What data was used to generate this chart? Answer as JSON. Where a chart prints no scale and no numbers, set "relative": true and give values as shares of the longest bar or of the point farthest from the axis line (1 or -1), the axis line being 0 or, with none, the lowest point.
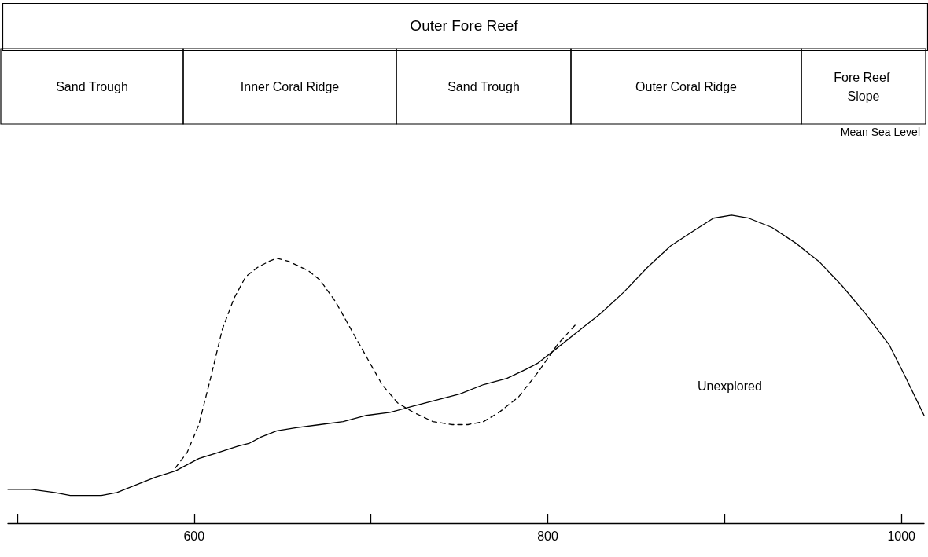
{
  "chart_data": {
    "type": "line",
    "title": "Outer Fore Reef",
    "relative": true,
    "marker": "none",
    "grid": false,
    "tick_labels": "x",
    "xlim": [
      494.7,
      1012.8
    ],
    "xticks": [
      {
        "value": 500,
        "label": null
      },
      600,
      {
        "value": 700,
        "label": null
      },
      800,
      {
        "value": 900,
        "label": null
      },
      1000
    ],
    "series": [
      {
        "color": "#000000",
        "line_style": "solid",
        "x": [
          494.7,
          507.9,
          521.2,
          530.0,
          547.6,
          556.4,
          565.3,
          578.5,
          589.5,
          602.7,
          613.8,
          624.8,
          631.4,
          638.0,
          646.8,
          657.8,
          671.1,
          684.3,
          697.5,
          710.8,
          724.0,
          737.2,
          750.4,
          763.7,
          776.9,
          787.9,
          794.5,
          803.4,
          816.6,
          829.8,
          843.0,
          856.3,
          869.5,
          882.7,
          893.7,
          903.9,
          913.6,
          926.8,
          940.0,
          953.3,
          966.5,
          979.7,
          993.0,
          1001.8,
          1012.8
        ],
        "values": [
          0.11,
          0.11,
          0.1,
          0.09,
          0.09,
          0.1,
          0.12,
          0.15,
          0.17,
          0.21,
          0.23,
          0.25,
          0.26,
          0.28,
          0.3,
          0.31,
          0.32,
          0.33,
          0.35,
          0.36,
          0.38,
          0.4,
          0.42,
          0.45,
          0.47,
          0.5,
          0.52,
          0.56,
          0.62,
          0.68,
          0.75,
          0.83,
          0.9,
          0.95,
          0.99,
          1,
          0.99,
          0.96,
          0.91,
          0.85,
          0.77,
          0.68,
          0.58,
          0.48,
          0.35
        ]
      },
      {
        "color": "#000000",
        "line_style": "dashed",
        "x": [
          589.5,
          596.1,
          602.7,
          609.3,
          616.0,
          622.6,
          629.2,
          635.8,
          642.4,
          646.8,
          653.4,
          664.5,
          671.1,
          679.9,
          688.7,
          697.5,
          706.3,
          715.2,
          724.0,
          735.0,
          746.0,
          754.9,
          763.7,
          772.5,
          783.5,
          794.5,
          805.5,
          816.6
        ],
        "values": [
          0.18,
          0.23,
          0.32,
          0.47,
          0.63,
          0.73,
          0.8,
          0.83,
          0.85,
          0.86,
          0.85,
          0.82,
          0.79,
          0.72,
          0.63,
          0.54,
          0.45,
          0.39,
          0.36,
          0.33,
          0.32,
          0.32,
          0.33,
          0.36,
          0.41,
          0.49,
          0.58,
          0.65
        ]
      }
    ],
    "ref_lines": [
      {
        "axis": "y",
        "value": 1.24,
        "label": "Mean Sea Level",
        "color": "#000000",
        "line_style": "solid"
      }
    ],
    "annotations": [
      "Sand Trough",
      "Inner Coral Ridge",
      "Sand Trough",
      "Outer Coral Ridge",
      "Fore Reef Slope",
      "Unexplored"
    ]
  }
}
